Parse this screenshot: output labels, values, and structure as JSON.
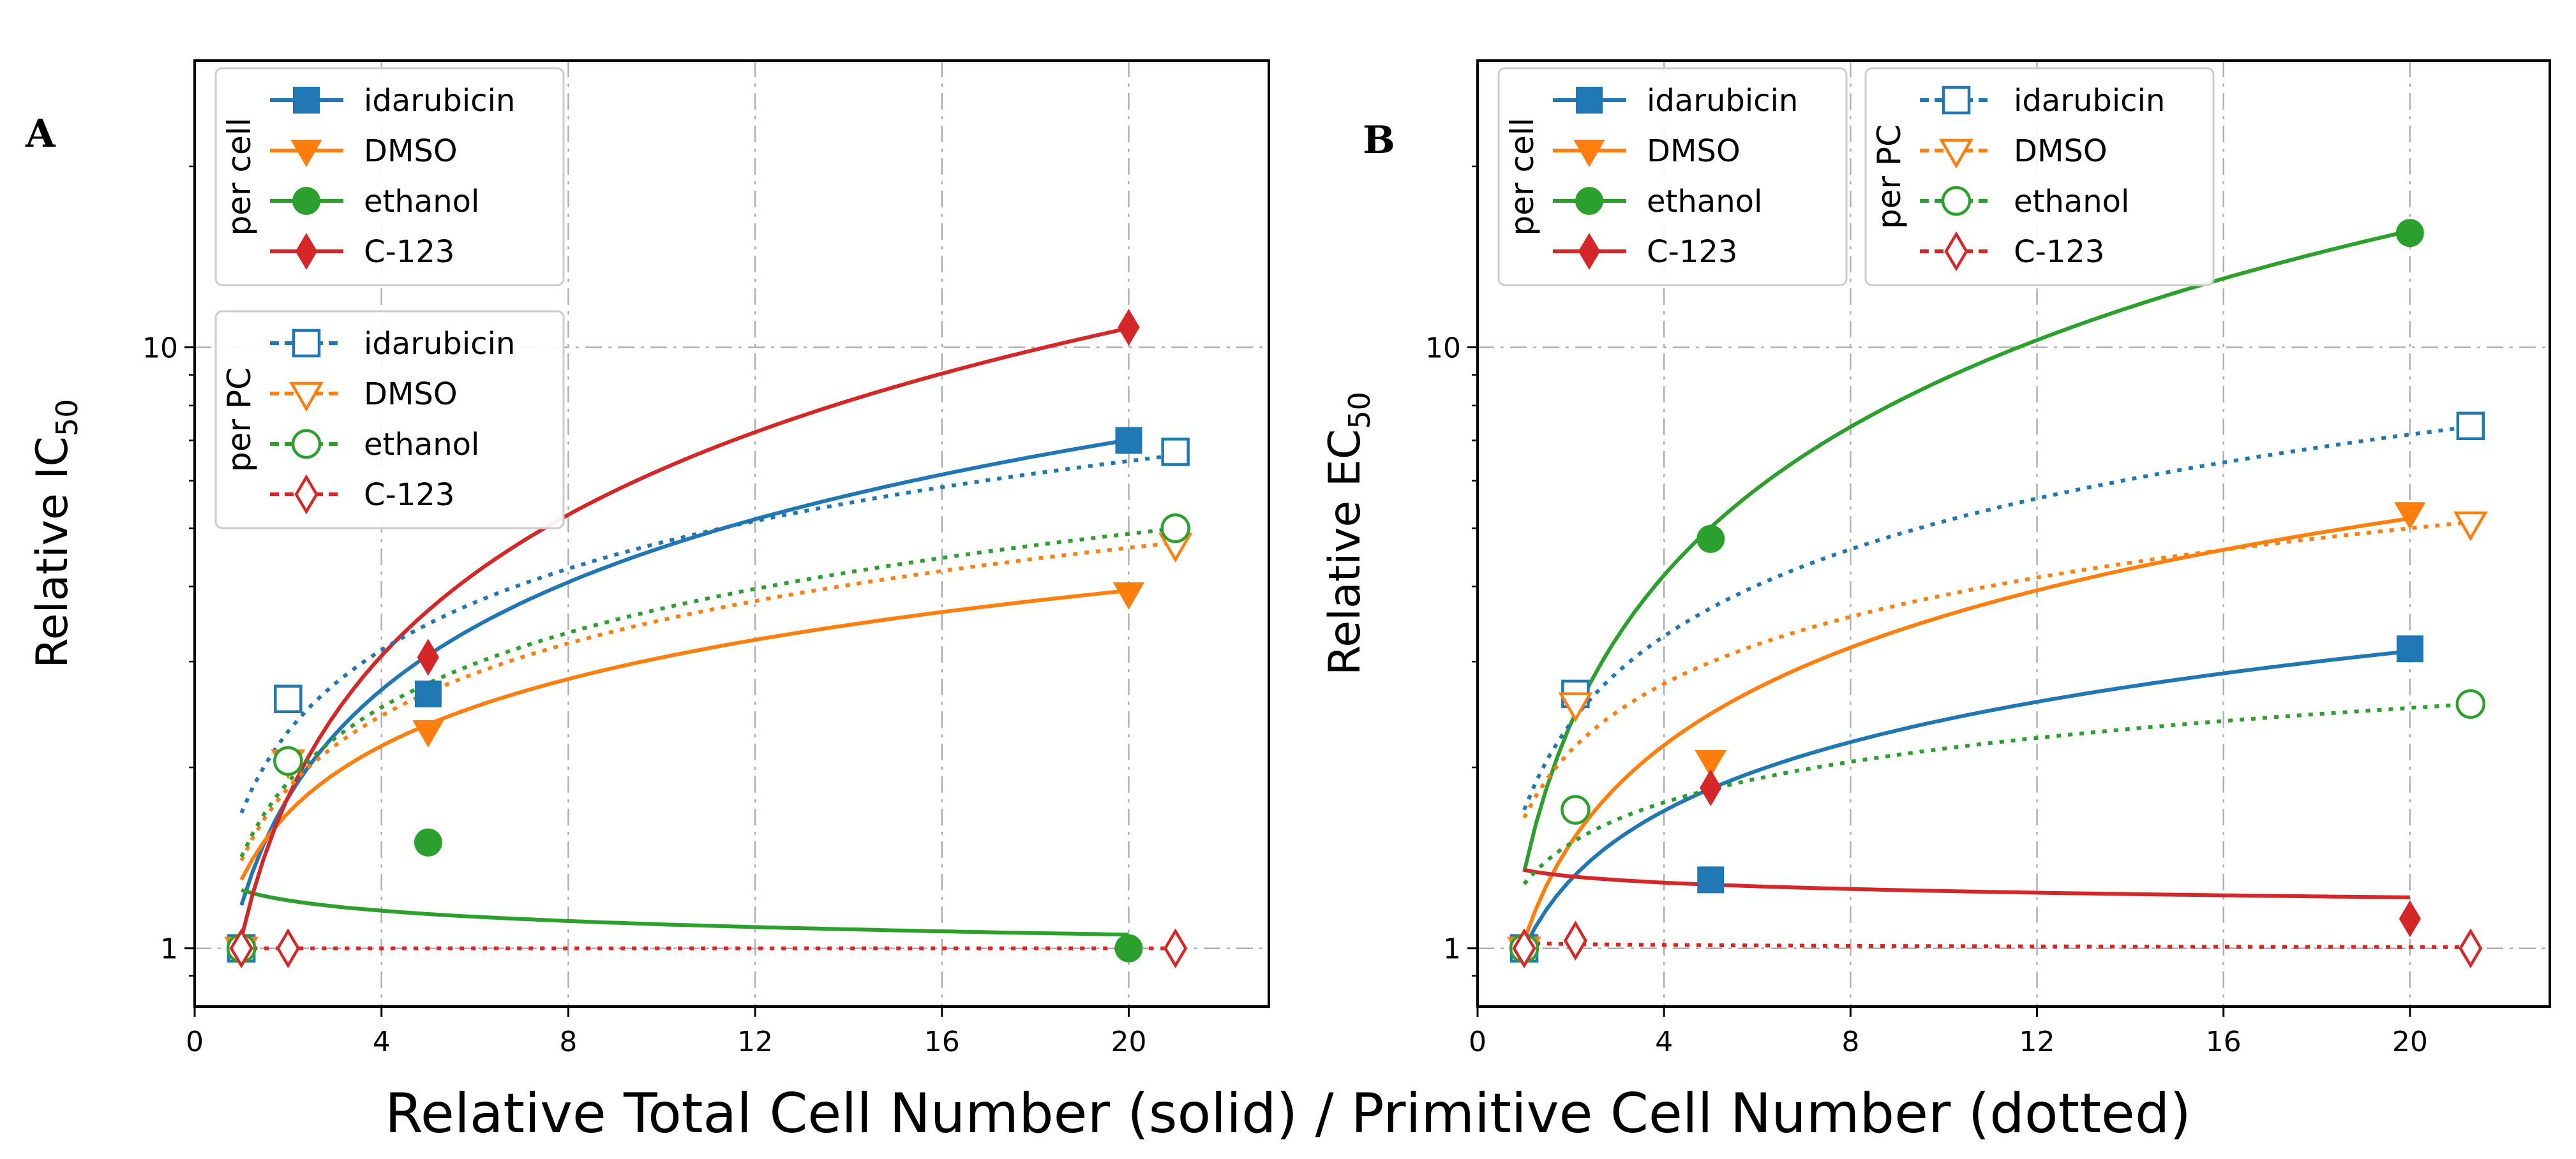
{
  "figure": {
    "xlabel": "Relative Total Cell Number (solid) / Primitive Cell Number (dotted)"
  },
  "legend": {
    "per_cell_title": "per cell",
    "per_pc_title": "per PC"
  },
  "colors": {
    "idarubicin": "#1f77b4",
    "DMSO": "#ff7f0e",
    "ethanol": "#2ca02c",
    "C-123": "#d62728"
  },
  "markers": {
    "idarubicin": "square",
    "DMSO": "triangle-down",
    "ethanol": "circle",
    "C-123": "diamond"
  },
  "chart_data": [
    {
      "type": "scatter",
      "panel_label": "A",
      "title": "",
      "ylabel_main": "Relative IC",
      "ylabel_sub": "50",
      "xlim": [
        0,
        23
      ],
      "ylim": [
        0.8,
        30
      ],
      "yscale": "log",
      "xticks": [
        0,
        4,
        8,
        12,
        16,
        20
      ],
      "xtick_labels": [
        "0",
        "4",
        "8",
        "12",
        "16",
        "20"
      ],
      "yticks": [
        1,
        10
      ],
      "ytick_labels": [
        "1",
        "10"
      ],
      "grid": true,
      "legend_position": "top-left",
      "series": [
        {
          "name": "idarubicin",
          "group": "per cell",
          "style": "solid",
          "filled": true,
          "x": [
            1,
            5,
            20
          ],
          "values": [
            1.0,
            2.65,
            7.0
          ],
          "fit": {
            "a": 1.18,
            "b": 0.595
          }
        },
        {
          "name": "DMSO",
          "group": "per cell",
          "style": "solid",
          "filled": true,
          "x": [
            1,
            5,
            20
          ],
          "values": [
            1.0,
            2.3,
            3.9
          ],
          "fit": {
            "a": 1.3,
            "b": 0.37
          }
        },
        {
          "name": "ethanol",
          "group": "per cell",
          "style": "solid",
          "filled": true,
          "x": [
            1,
            5,
            20
          ],
          "values": [
            1.0,
            1.5,
            1.0
          ],
          "fit": {
            "a": 1.25,
            "b": -0.057
          }
        },
        {
          "name": "C-123",
          "group": "per cell",
          "style": "solid",
          "filled": true,
          "x": [
            1,
            5,
            20
          ],
          "values": [
            1.0,
            3.05,
            10.8
          ],
          "fit": {
            "a": 1.04,
            "b": 0.78
          }
        },
        {
          "name": "idarubicin",
          "group": "per PC",
          "style": "dotted",
          "filled": false,
          "x": [
            1,
            2,
            21
          ],
          "values": [
            1.0,
            2.6,
            6.7
          ],
          "fit": {
            "a": 1.68,
            "b": 0.45
          }
        },
        {
          "name": "DMSO",
          "group": "per PC",
          "style": "dotted",
          "filled": false,
          "x": [
            1,
            2,
            21
          ],
          "values": [
            1.0,
            2.05,
            4.7
          ],
          "fit": {
            "a": 1.4,
            "b": 0.4
          }
        },
        {
          "name": "ethanol",
          "group": "per PC",
          "style": "dotted",
          "filled": false,
          "x": [
            1,
            2,
            21
          ],
          "values": [
            1.0,
            2.05,
            5.0
          ],
          "fit": {
            "a": 1.42,
            "b": 0.413
          }
        },
        {
          "name": "C-123",
          "group": "per PC",
          "style": "dotted",
          "filled": false,
          "x": [
            1,
            2,
            21
          ],
          "values": [
            1.0,
            1.0,
            1.0
          ],
          "fit": {
            "a": 1.0,
            "b": 0.0
          }
        }
      ]
    },
    {
      "type": "scatter",
      "panel_label": "B",
      "title": "",
      "ylabel_main": "Relative EC",
      "ylabel_sub": "50",
      "xlim": [
        0,
        23
      ],
      "ylim": [
        0.8,
        30
      ],
      "yscale": "log",
      "xticks": [
        0,
        4,
        8,
        12,
        16,
        20
      ],
      "xtick_labels": [
        "0",
        "4",
        "8",
        "12",
        "16",
        "20"
      ],
      "yticks": [
        1,
        10
      ],
      "ytick_labels": [
        "1",
        "10"
      ],
      "grid": true,
      "legend_position": "top-left",
      "series": [
        {
          "name": "idarubicin",
          "group": "per cell",
          "style": "solid",
          "filled": true,
          "x": [
            1,
            5,
            20
          ],
          "values": [
            1.0,
            1.3,
            3.15
          ],
          "fit": {
            "a": 1.0,
            "b": 0.38
          }
        },
        {
          "name": "DMSO",
          "group": "per cell",
          "style": "solid",
          "filled": true,
          "x": [
            1,
            5,
            20
          ],
          "values": [
            1.0,
            2.05,
            5.3
          ],
          "fit": {
            "a": 1.03,
            "b": 0.54
          }
        },
        {
          "name": "ethanol",
          "group": "per cell",
          "style": "solid",
          "filled": true,
          "x": [
            1,
            5,
            20
          ],
          "values": [
            1.0,
            4.8,
            15.5
          ],
          "fit": {
            "a": 1.34,
            "b": 0.82
          }
        },
        {
          "name": "C-123",
          "group": "per cell",
          "style": "solid",
          "filled": true,
          "x": [
            1,
            5,
            20
          ],
          "values": [
            1.0,
            1.85,
            1.12
          ],
          "fit": {
            "a": 1.35,
            "b": -0.035
          }
        },
        {
          "name": "idarubicin",
          "group": "per PC",
          "style": "dotted",
          "filled": false,
          "x": [
            1,
            2.1,
            21.3
          ],
          "values": [
            1.0,
            2.65,
            7.4
          ],
          "fit": {
            "a": 1.7,
            "b": 0.48
          }
        },
        {
          "name": "DMSO",
          "group": "per PC",
          "style": "dotted",
          "filled": false,
          "x": [
            1,
            2.1,
            21.3
          ],
          "values": [
            1.0,
            2.55,
            5.1
          ],
          "fit": {
            "a": 1.65,
            "b": 0.37
          }
        },
        {
          "name": "ethanol",
          "group": "per PC",
          "style": "dotted",
          "filled": false,
          "x": [
            1,
            2.1,
            21.3
          ],
          "values": [
            1.0,
            1.7,
            2.55
          ],
          "fit": {
            "a": 1.28,
            "b": 0.225
          }
        },
        {
          "name": "C-123",
          "group": "per PC",
          "style": "dotted",
          "filled": false,
          "x": [
            1,
            2.1,
            21.3
          ],
          "values": [
            1.0,
            1.03,
            1.0
          ],
          "fit": {
            "a": 1.02,
            "b": -0.005
          }
        }
      ]
    }
  ]
}
